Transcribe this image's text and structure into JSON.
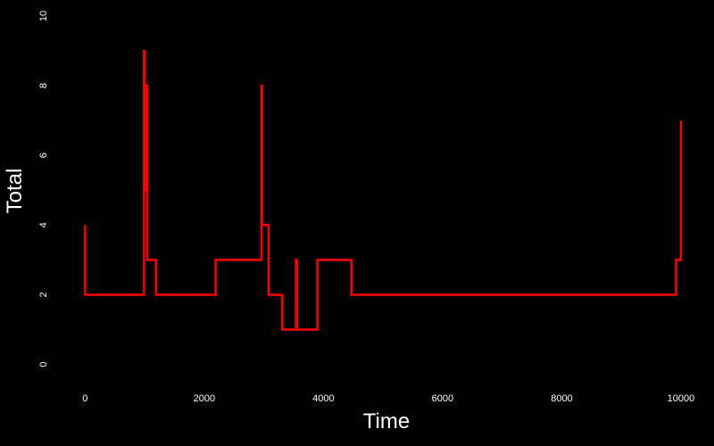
{
  "chart_data": {
    "type": "line",
    "step": true,
    "title": "",
    "xlabel": "Time",
    "ylabel": "Total",
    "xlim": [
      -200,
      10300
    ],
    "ylim": [
      -0.6,
      10
    ],
    "xticks": [
      0,
      2000,
      4000,
      6000,
      8000,
      10000
    ],
    "yticks": [
      0,
      2,
      4,
      6,
      8,
      10
    ],
    "grid": false,
    "legend": "none",
    "background_color": "#000000",
    "axis_text_color": "#ffffff",
    "series": [
      {
        "color": "#ff0000",
        "points": [
          [
            0,
            4
          ],
          [
            0,
            2
          ],
          [
            990,
            2
          ],
          [
            990,
            9
          ],
          [
            1000,
            9
          ],
          [
            1000,
            5
          ],
          [
            1010,
            5
          ],
          [
            1010,
            7
          ],
          [
            1020,
            7
          ],
          [
            1020,
            5
          ],
          [
            1035,
            5
          ],
          [
            1035,
            8
          ],
          [
            1045,
            8
          ],
          [
            1045,
            3
          ],
          [
            1190,
            3
          ],
          [
            1190,
            2
          ],
          [
            2190,
            2
          ],
          [
            2190,
            3
          ],
          [
            2960,
            3
          ],
          [
            2960,
            8
          ],
          [
            2970,
            8
          ],
          [
            2970,
            4
          ],
          [
            3080,
            4
          ],
          [
            3080,
            2
          ],
          [
            3310,
            2
          ],
          [
            3310,
            1
          ],
          [
            3540,
            1
          ],
          [
            3540,
            3
          ],
          [
            3555,
            3
          ],
          [
            3555,
            1
          ],
          [
            3900,
            1
          ],
          [
            3900,
            3
          ],
          [
            4470,
            3
          ],
          [
            4470,
            2
          ],
          [
            9920,
            2
          ],
          [
            9920,
            3
          ],
          [
            10000,
            3
          ],
          [
            10000,
            7
          ]
        ]
      }
    ]
  }
}
